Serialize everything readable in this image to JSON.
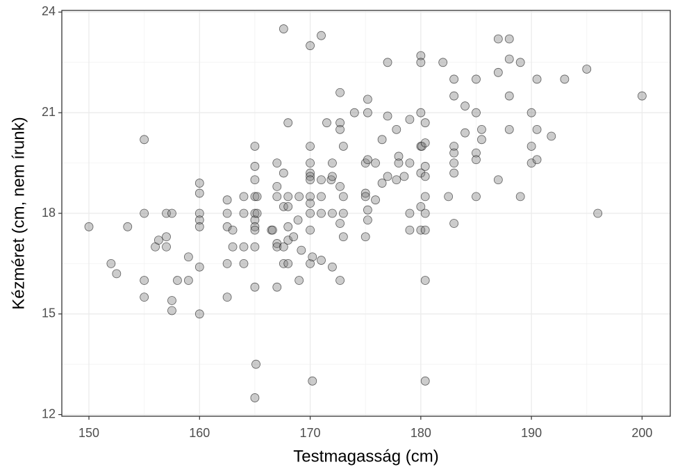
{
  "chart_data": {
    "type": "scatter",
    "x_label": "Testmagasság (cm)",
    "y_label": "Kézméret (cm, nem írunk)",
    "xlim": [
      147.55,
      202.55
    ],
    "ylim": [
      11.95,
      24.05
    ],
    "xticks": [
      150,
      160,
      170,
      180,
      190,
      200
    ],
    "yticks": [
      12,
      15,
      18,
      21,
      24
    ],
    "minor_xticks": [
      155,
      165,
      175,
      185,
      195
    ],
    "minor_yticks": [
      13.5,
      16.5,
      19.5,
      22.5
    ],
    "grid": true,
    "color": "#808080",
    "alpha": 0.4,
    "x": [
      150,
      152,
      152.5,
      153.5,
      155,
      155,
      155,
      155,
      156,
      156.3,
      157,
      157.5,
      157,
      157,
      157.5,
      157.5,
      158,
      159,
      159,
      160,
      160,
      160,
      160,
      160,
      160,
      160,
      162.5,
      162.5,
      162.5,
      162.5,
      162.5,
      163,
      163,
      164,
      164,
      164,
      164,
      165,
      165,
      165,
      165,
      165,
      165,
      165,
      165,
      165,
      165,
      165.1,
      165,
      165.2,
      165.2,
      166.5,
      166.6,
      167,
      167,
      167,
      167,
      167,
      167,
      167.6,
      167.6,
      167.6,
      167.6,
      167.6,
      168,
      168,
      168,
      168,
      168,
      168,
      168.5,
      168.9,
      169,
      169,
      169.2,
      170,
      170,
      170,
      170,
      170,
      170,
      170,
      170,
      170,
      170,
      170,
      170.2,
      170.2,
      171,
      171,
      171,
      171,
      171,
      171.5,
      171.9,
      172,
      172,
      172,
      172,
      172.7,
      172.7,
      172.7,
      172.7,
      172.7,
      172.7,
      173,
      173,
      173,
      173,
      174,
      175,
      175,
      175,
      175,
      175.2,
      175.2,
      175.2,
      175.2,
      175.2,
      175.9,
      175.9,
      176.5,
      176.5,
      177,
      177,
      177,
      177.8,
      177.8,
      178,
      178,
      178.5,
      179,
      179,
      179,
      179,
      180,
      180,
      180,
      180,
      180,
      180,
      180,
      180.1,
      180.4,
      180.4,
      180.4,
      180.4,
      180.4,
      180.4,
      180.4,
      180.4,
      180.4,
      182,
      182.5,
      183,
      183,
      183,
      183,
      183,
      183,
      183,
      184,
      184,
      185,
      185,
      185,
      185,
      185,
      185.5,
      185.5,
      187,
      187,
      187,
      188,
      188,
      188,
      188,
      189,
      189,
      190,
      190,
      190,
      190.5,
      190.5,
      190.5,
      191.8,
      193,
      195,
      196,
      200
    ],
    "values": [
      17.6,
      16.5,
      16.2,
      17.6,
      20.2,
      18,
      16,
      15.5,
      17,
      17.2,
      18,
      18,
      17.3,
      17,
      15.4,
      15.1,
      16,
      16.7,
      16,
      18.9,
      18.6,
      18,
      17.8,
      17.6,
      16.4,
      15,
      18.4,
      18,
      17.6,
      16.5,
      15.5,
      17.5,
      17,
      18.5,
      18,
      17,
      16.5,
      20,
      19.4,
      19,
      18.5,
      18,
      17.8,
      17.6,
      17.5,
      17,
      15.8,
      13.5,
      12.5,
      18.5,
      18,
      17.5,
      17.5,
      19.5,
      18.8,
      18.5,
      17.1,
      17,
      15.8,
      23.5,
      19.2,
      18.2,
      17,
      16.5,
      20.7,
      18.5,
      18.2,
      17.6,
      17.2,
      16.5,
      17.3,
      17.8,
      16,
      18.5,
      16.9,
      23,
      20,
      19.5,
      19.2,
      19.1,
      19,
      18.5,
      18.3,
      18,
      17.5,
      16.5,
      13,
      16.7,
      23.3,
      19,
      18.5,
      18,
      16.6,
      20.7,
      19,
      19.5,
      19.1,
      18,
      16.4,
      21.6,
      20.7,
      20.5,
      18.8,
      17.7,
      16,
      20,
      18.5,
      18,
      17.3,
      21,
      19.5,
      18.6,
      18.5,
      17.3,
      21.4,
      21,
      19.6,
      18.1,
      17.8,
      19.5,
      18.4,
      18.9,
      20.2,
      22.5,
      20.9,
      19.1,
      20.5,
      19,
      19.7,
      19.5,
      19.1,
      20.8,
      19.5,
      18,
      17.5,
      22.7,
      22.5,
      21,
      20,
      19.2,
      18.2,
      17.5,
      20,
      20.7,
      20.1,
      19.4,
      19.1,
      18.5,
      18,
      17.5,
      16,
      13,
      22.5,
      18.5,
      22,
      21.5,
      20,
      19.8,
      19.5,
      19.2,
      17.7,
      21.2,
      20.4,
      22,
      21,
      19.8,
      19.6,
      18.5,
      20.5,
      20.2,
      23.2,
      22.2,
      19,
      23.2,
      22.6,
      21.5,
      20.5,
      22.5,
      18.5,
      21,
      20,
      19.5,
      22,
      20.5,
      19.6,
      20.3,
      22,
      22.3,
      18,
      21.5
    ]
  }
}
